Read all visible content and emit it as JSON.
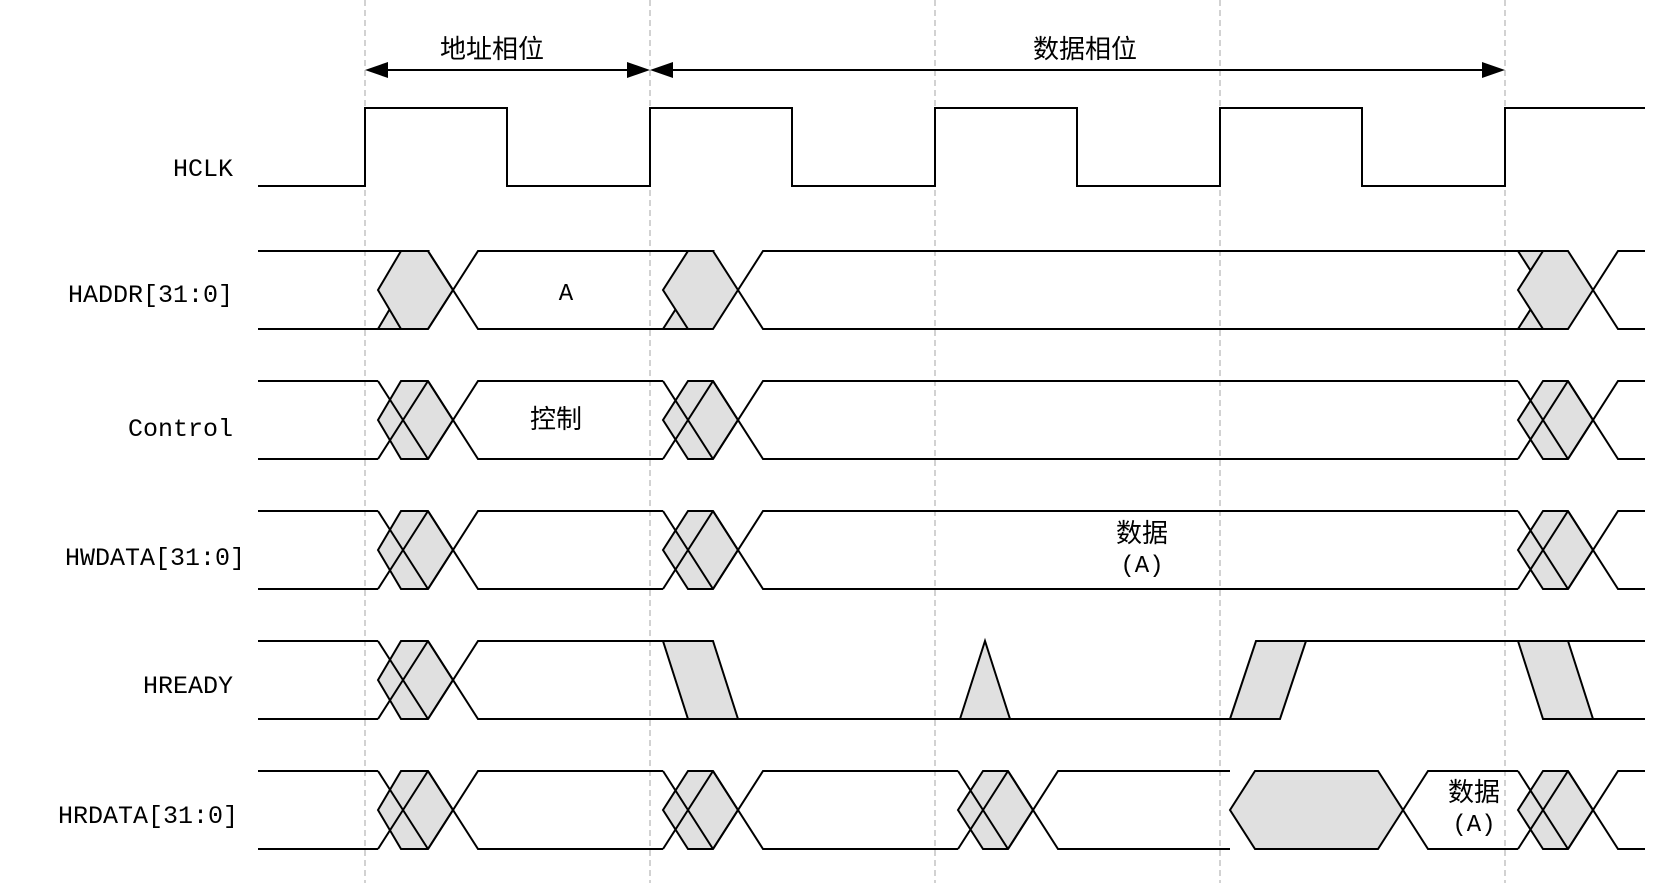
{
  "phases": {
    "address": "地址相位",
    "data": "数据相位"
  },
  "signals": {
    "hclk": "HCLK",
    "haddr": "HADDR[31:0]",
    "control": "Control",
    "hwdata": "HWDATA[31:0]",
    "hready": "HREADY",
    "hrdata": "HRDATA[31:0]"
  },
  "values": {
    "haddr": "A",
    "control": "控制",
    "hwdata_line1": "数据",
    "hwdata_line2": "(A)",
    "hrdata_line1": "数据",
    "hrdata_line2": "(A)"
  }
}
